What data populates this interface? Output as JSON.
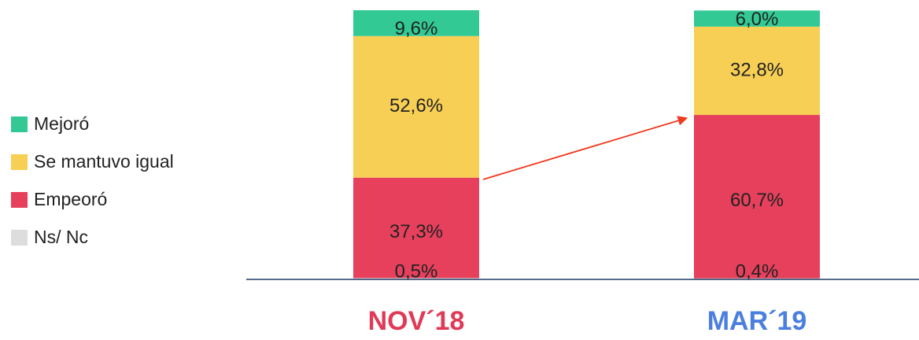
{
  "chart_data": {
    "type": "bar",
    "stacked": true,
    "categories": [
      "NOV´18",
      "MAR´19"
    ],
    "category_colors": [
      "#e03a57",
      "#4a7fe0"
    ],
    "series": [
      {
        "name": "Ns/ Nc",
        "color": "#dddddd",
        "values": [
          0.5,
          0.4
        ],
        "value_labels": [
          "0,5%",
          "0,4%"
        ]
      },
      {
        "name": "Empeoró",
        "color": "#e6405c",
        "values": [
          37.3,
          60.7
        ],
        "value_labels": [
          "37,3%",
          "60,7%"
        ]
      },
      {
        "name": "Se mantuvo igual",
        "color": "#f7cf55",
        "values": [
          52.6,
          32.8
        ],
        "value_labels": [
          "52,6%",
          "32,8%"
        ]
      },
      {
        "name": "Mejoró",
        "color": "#33c995",
        "values": [
          9.6,
          6.0
        ],
        "value_labels": [
          "9,6%",
          "6,0%"
        ]
      }
    ]
  }
}
